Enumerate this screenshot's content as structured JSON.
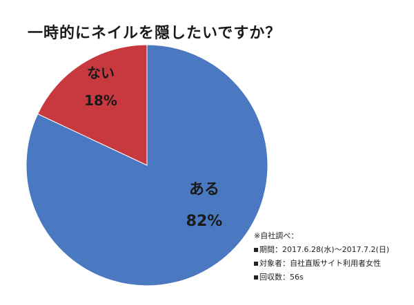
{
  "chart_data": {
    "type": "pie",
    "title": "一時的にネイルを隠したいですか？",
    "slices": [
      {
        "label": "ある",
        "value": 82,
        "value_label": "82%",
        "color": "#4a78c1"
      },
      {
        "label": "ない",
        "value": 18,
        "value_label": "18%",
        "color": "#c8383f"
      }
    ],
    "start": "top",
    "direction": "clockwise",
    "legend": "none"
  },
  "notes": {
    "header": "※自社調べ：",
    "period": "期間：2017.6.28(水)～2017.7.2(日)",
    "target": "対象者：自社直販サイト利用者女性",
    "count": "回収数：56s"
  }
}
